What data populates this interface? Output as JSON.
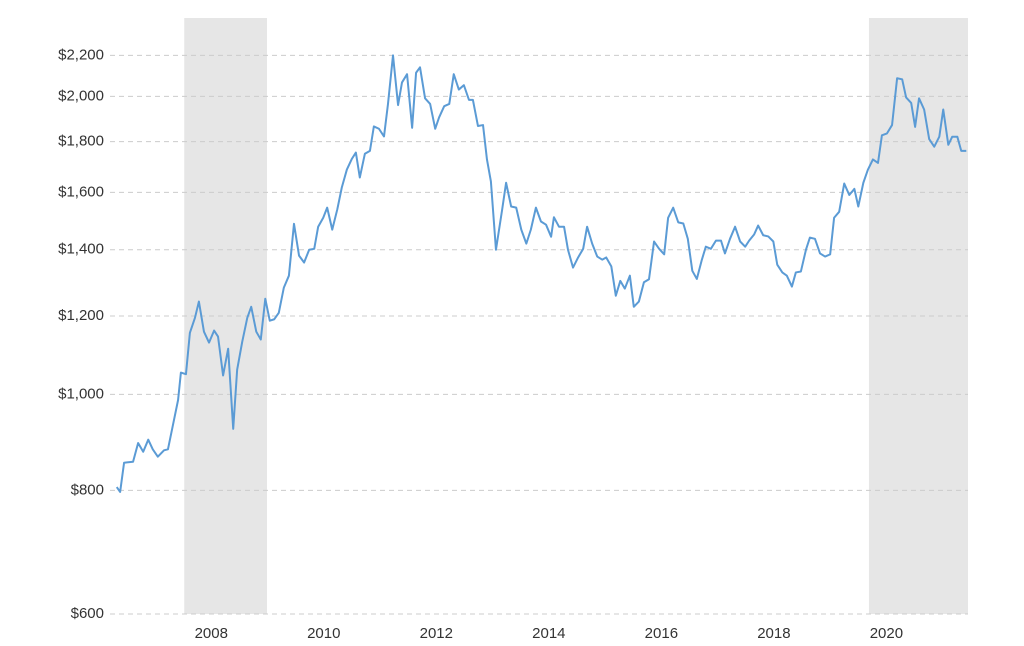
{
  "chart_data": {
    "type": "line",
    "y_scale": "log",
    "grid": true,
    "xlim": [
      2006.2,
      2021.45
    ],
    "xticks": [
      2008,
      2010,
      2012,
      2014,
      2016,
      2018,
      2020
    ],
    "ylim": [
      600,
      2400
    ],
    "yticks": [
      {
        "value": 600,
        "label": "$600"
      },
      {
        "value": 800,
        "label": "$800"
      },
      {
        "value": 1000,
        "label": "$1,000"
      },
      {
        "value": 1200,
        "label": "$1,200"
      },
      {
        "value": 1400,
        "label": "$1,400"
      },
      {
        "value": 1600,
        "label": "$1,600"
      },
      {
        "value": 1800,
        "label": "$1,800"
      },
      {
        "value": 2000,
        "label": "$2,000"
      },
      {
        "value": 2200,
        "label": "$2,200"
      }
    ],
    "shaded_ranges": [
      [
        2007.52,
        2008.99
      ],
      [
        2019.69,
        2021.45
      ]
    ],
    "shade_color": "#e6e6e6",
    "x": [
      2006.32,
      2006.38,
      2006.45,
      2006.61,
      2006.7,
      2006.79,
      2006.88,
      2006.96,
      2007.05,
      2007.16,
      2007.23,
      2007.32,
      2007.41,
      2007.46,
      2007.55,
      2007.62,
      2007.71,
      2007.78,
      2007.87,
      2007.96,
      2008.05,
      2008.12,
      2008.21,
      2008.3,
      2008.39,
      2008.46,
      2008.55,
      2008.64,
      2008.71,
      2008.8,
      2008.88,
      2008.96,
      2009.04,
      2009.12,
      2009.2,
      2009.29,
      2009.38,
      2009.47,
      2009.56,
      2009.65,
      2009.74,
      2009.83,
      2009.9,
      2009.99,
      2010.06,
      2010.15,
      2010.24,
      2010.32,
      2010.41,
      2010.5,
      2010.57,
      2010.64,
      2010.73,
      2010.82,
      2010.89,
      2010.98,
      2011.07,
      2011.14,
      2011.23,
      2011.32,
      2011.39,
      2011.48,
      2011.57,
      2011.64,
      2011.71,
      2011.8,
      2011.89,
      2011.98,
      2012.05,
      2012.14,
      2012.23,
      2012.31,
      2012.4,
      2012.49,
      2012.58,
      2012.65,
      2012.74,
      2012.83,
      2012.9,
      2012.97,
      2013.06,
      2013.17,
      2013.24,
      2013.33,
      2013.42,
      2013.51,
      2013.6,
      2013.68,
      2013.77,
      2013.86,
      2013.95,
      2014.04,
      2014.09,
      2014.18,
      2014.27,
      2014.34,
      2014.43,
      2014.52,
      2014.61,
      2014.68,
      2014.77,
      2014.86,
      2014.95,
      2015.02,
      2015.11,
      2015.19,
      2015.27,
      2015.35,
      2015.44,
      2015.51,
      2015.6,
      2015.69,
      2015.78,
      2015.87,
      2015.96,
      2016.05,
      2016.12,
      2016.21,
      2016.3,
      2016.39,
      2016.47,
      2016.55,
      2016.63,
      2016.72,
      2016.79,
      2016.88,
      2016.97,
      2017.06,
      2017.13,
      2017.22,
      2017.31,
      2017.4,
      2017.49,
      2017.56,
      2017.65,
      2017.72,
      2017.81,
      2017.9,
      2017.99,
      2018.06,
      2018.15,
      2018.23,
      2018.32,
      2018.39,
      2018.48,
      2018.57,
      2018.64,
      2018.73,
      2018.82,
      2018.91,
      2019.0,
      2019.07,
      2019.16,
      2019.25,
      2019.34,
      2019.43,
      2019.5,
      2019.59,
      2019.67,
      2019.76,
      2019.85,
      2019.92,
      2020.01,
      2020.1,
      2020.19,
      2020.28,
      2020.35,
      2020.44,
      2020.51,
      2020.58,
      2020.67,
      2020.76,
      2020.85,
      2020.94,
      2021.01,
      2021.1,
      2021.17,
      2021.26,
      2021.33,
      2021.42
    ],
    "series": [
      {
        "color": "#5b9bd5",
        "values": [
          806,
          797,
          853,
          855,
          893,
          875,
          900,
          880,
          865,
          878,
          880,
          932,
          987,
          1052,
          1048,
          1154,
          1195,
          1241,
          1157,
          1128,
          1160,
          1144,
          1045,
          1112,
          923,
          1059,
          1130,
          1195,
          1226,
          1157,
          1136,
          1249,
          1187,
          1191,
          1209,
          1282,
          1318,
          1487,
          1381,
          1359,
          1400,
          1403,
          1477,
          1508,
          1544,
          1467,
          1538,
          1618,
          1687,
          1730,
          1755,
          1656,
          1750,
          1762,
          1865,
          1855,
          1822,
          1963,
          2200,
          1960,
          2066,
          2106,
          1859,
          2113,
          2140,
          1991,
          1965,
          1855,
          1905,
          1955,
          1965,
          2106,
          2032,
          2053,
          1984,
          1984,
          1867,
          1871,
          1727,
          1641,
          1400,
          1537,
          1636,
          1548,
          1544,
          1467,
          1420,
          1467,
          1544,
          1495,
          1484,
          1443,
          1510,
          1477,
          1477,
          1400,
          1343,
          1375,
          1403,
          1477,
          1420,
          1378,
          1368,
          1375,
          1347,
          1258,
          1302,
          1279,
          1318,
          1226,
          1241,
          1298,
          1307,
          1427,
          1403,
          1385,
          1508,
          1544,
          1492,
          1488,
          1436,
          1333,
          1308,
          1368,
          1410,
          1403,
          1430,
          1430,
          1388,
          1436,
          1477,
          1427,
          1410,
          1430,
          1451,
          1481,
          1448,
          1444,
          1427,
          1352,
          1328,
          1318,
          1285,
          1328,
          1331,
          1400,
          1440,
          1436,
          1388,
          1378,
          1385,
          1508,
          1529,
          1633,
          1590,
          1613,
          1548,
          1636,
          1686,
          1727,
          1713,
          1827,
          1835,
          1871,
          2086,
          2081,
          1995,
          1970,
          1863,
          1991,
          1940,
          1811,
          1779,
          1821,
          1940,
          1787,
          1821,
          1821,
          1762,
          1762
        ]
      }
    ]
  }
}
